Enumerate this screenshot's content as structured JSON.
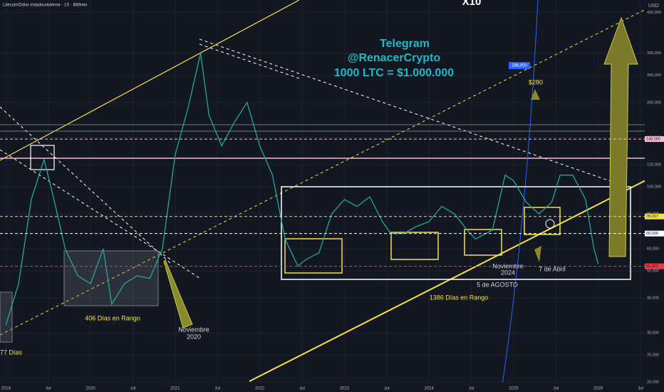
{
  "chart_data": {
    "type": "line",
    "title": "Litecoin/Dólar estadounidense · 1S · Bitfinex",
    "y_unit": "USD",
    "log_scale": true,
    "grid": true,
    "x": [
      2019.0,
      2019.15,
      2019.3,
      2019.45,
      2019.55,
      2019.7,
      2019.85,
      2020.0,
      2020.15,
      2020.25,
      2020.4,
      2020.55,
      2020.7,
      2020.85,
      2021.0,
      2021.15,
      2021.3,
      2021.4,
      2021.55,
      2021.7,
      2021.85,
      2022.0,
      2022.15,
      2022.3,
      2022.45,
      2022.55,
      2022.7,
      2022.85,
      2023.0,
      2023.15,
      2023.3,
      2023.45,
      2023.55,
      2023.7,
      2023.85,
      2024.0,
      2024.15,
      2024.3,
      2024.45,
      2024.55,
      2024.75,
      2024.9,
      2025.0,
      2025.15,
      2025.3,
      2025.45,
      2025.55,
      2025.7,
      2025.85,
      2025.95,
      2026.0
    ],
    "series": [
      {
        "name": "LTCUSD",
        "color": "#26a69a",
        "values": [
          32000,
          45000,
          90000,
          125000,
          95000,
          60000,
          48000,
          45000,
          60000,
          38000,
          45000,
          48000,
          47000,
          60000,
          130000,
          190000,
          300000,
          180000,
          140000,
          170000,
          200000,
          140000,
          110000,
          65000,
          52000,
          55000,
          58000,
          80000,
          90000,
          85000,
          92000,
          75000,
          68000,
          68000,
          72000,
          75000,
          85000,
          80000,
          70000,
          65000,
          70000,
          110000,
          105000,
          88000,
          80000,
          88000,
          110000,
          110000,
          90000,
          60000,
          53000
        ]
      }
    ],
    "xlim": [
      2018.93,
      2026.55
    ],
    "xticks": [
      2019,
      {
        "value": 2019.5,
        "label": "Jul"
      },
      2020,
      {
        "value": 2020.5,
        "label": "Jul"
      },
      2021,
      {
        "value": 2021.5,
        "label": "Jul"
      },
      2022,
      {
        "value": 2022.5,
        "label": "Jul"
      },
      2023,
      {
        "value": 2023.5,
        "label": "Jul"
      },
      2024,
      {
        "value": 2024.5,
        "label": "Jul"
      },
      2025,
      {
        "value": 2025.5,
        "label": "Jul"
      },
      2026,
      {
        "value": 2026.5,
        "label": "Jul"
      }
    ],
    "ylim": [
      19000,
      465000
    ],
    "yticks": [
      {
        "value": 20000,
        "label": "20,000"
      },
      {
        "value": 25000,
        "label": "25,000"
      },
      {
        "value": 30000,
        "label": "30,000"
      },
      {
        "value": 40000,
        "label": "40,000"
      },
      {
        "value": 50000,
        "label": "50,000"
      },
      {
        "value": 60000,
        "label": "60,000"
      },
      {
        "value": 80000,
        "label": "80,000"
      },
      {
        "value": 100000,
        "label": "100,000"
      },
      {
        "value": 120000,
        "label": "120,000"
      },
      {
        "value": 150000,
        "label": "150,000"
      },
      {
        "value": 200000,
        "label": "200,000"
      },
      {
        "value": 250000,
        "label": "250,000"
      },
      {
        "value": 300000,
        "label": "300,000"
      },
      {
        "value": 420000,
        "label": "420,000"
      }
    ],
    "levels": [
      {
        "value": 148000,
        "label": "148,000",
        "color": "#f8bbd0"
      },
      {
        "value": 78267,
        "label": "78,267",
        "color": "#f5e04a"
      },
      {
        "value": 68000,
        "label": "68,000",
        "color": "#ffffff"
      },
      {
        "value": 51921,
        "label": "51,921",
        "color": "#f23645"
      }
    ],
    "annotations": {
      "telegram": "Telegram",
      "handle": "@RenacerCrypto",
      "promo": "1000 LTC = $1.000.000",
      "target": "$280",
      "blue_target": "286,000",
      "x10": "X10",
      "range_2020": "406 Días en Rango",
      "nov_2020": [
        "Noviembre",
        "2020"
      ],
      "range_2022": "1386 Días en Rango",
      "aug": "5 de AGOSTO",
      "nov_2024": [
        "Noviembre",
        "2024"
      ],
      "april": "7 de Abril",
      "days77": "77 Días"
    }
  }
}
